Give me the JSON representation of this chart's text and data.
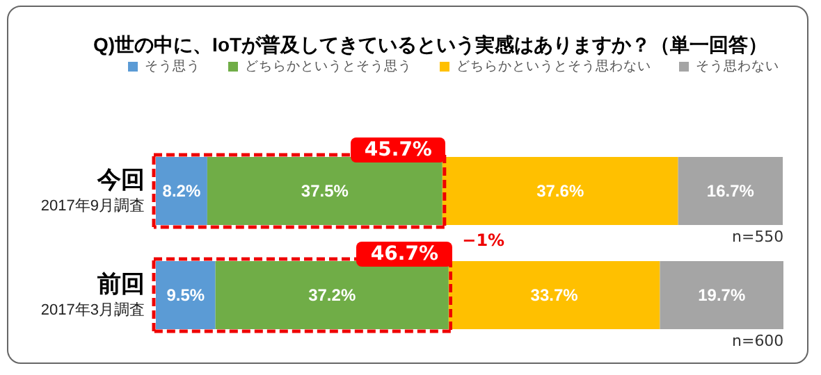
{
  "chart_data": {
    "type": "bar",
    "orientation": "horizontal",
    "stacked": true,
    "title": "Q)世の中に、IoTが普及してきているという実感はありますか？（単一回答）",
    "categories": [
      "今回\n2017年9月調査",
      "前回\n2017年3月調査"
    ],
    "series": [
      {
        "name": "そう思う",
        "color": "#5b9bd5",
        "values": [
          8.2,
          9.5
        ],
        "value_labels": [
          "8.2%",
          "9.5%"
        ]
      },
      {
        "name": "どちらかというとそう思う",
        "color": "#70ad47",
        "values": [
          37.5,
          37.2
        ],
        "value_labels": [
          "37.5%",
          "37.2%"
        ]
      },
      {
        "name": "どちらかというとそう思わない",
        "color": "#ffc000",
        "values": [
          37.6,
          33.7
        ],
        "value_labels": [
          "37.6%",
          "33.7%"
        ]
      },
      {
        "name": "そう思わない",
        "color": "#a5a5a5",
        "values": [
          16.7,
          19.7
        ],
        "value_labels": [
          "16.7%",
          "19.7%"
        ]
      }
    ],
    "tick_labels": "y",
    "grid": false,
    "legend": "top right",
    "annotations": [
      {
        "text": "45.7%",
        "x": 45.7,
        "y": "今回\n2017年9月調査"
      },
      {
        "text": "46.7%",
        "x": 46.7,
        "y": "前回\n2017年3月調査"
      },
      "−1%",
      "n=550",
      "n=600"
    ]
  }
}
